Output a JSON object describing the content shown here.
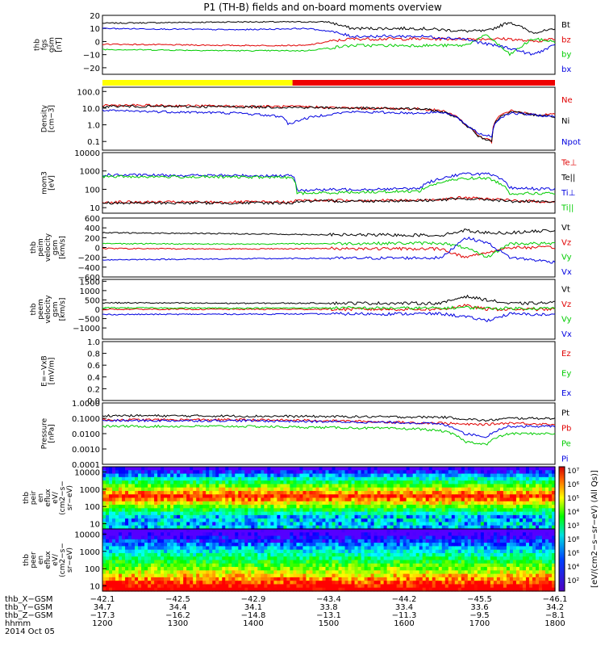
{
  "title": "P1 (TH-B) fields and on-board moments overview",
  "date_label": "2014 Oct 05",
  "colors": {
    "black": "#000000",
    "red": "#e00000",
    "green": "#00cc00",
    "blue": "#0000e0",
    "yellow": "#ffff00",
    "bar_red": "#ee0000"
  },
  "chart_data": {
    "type": "line",
    "x_range_hhmm": [
      "1200",
      "1800"
    ],
    "panels": [
      {
        "id": "fgs",
        "ylabel": [
          "thb",
          "fgs",
          "gsm",
          "[nT]"
        ],
        "yscale": "linear",
        "ylim": [
          -25,
          20
        ],
        "ticks": [
          "20",
          "10",
          "0",
          "−10",
          "−20"
        ],
        "tick_values": [
          20,
          10,
          0,
          -10,
          -20
        ],
        "legend": [
          {
            "label": "Bt",
            "color": "#000000"
          },
          {
            "label": "bz",
            "color": "#e00000"
          },
          {
            "label": "by",
            "color": "#00cc00"
          },
          {
            "label": "bx",
            "color": "#0000e0"
          }
        ],
        "series": [
          {
            "name": "Bt",
            "color": "#000000",
            "x": [
              0,
              0.3,
              0.45,
              0.5,
              0.55,
              0.7,
              0.8,
              0.85,
              0.9,
              0.95,
              1.0
            ],
            "y": [
              14,
              15,
              15,
              15,
              10,
              10,
              8,
              8,
              15,
              7,
              9
            ]
          },
          {
            "name": "bz",
            "color": "#e00000",
            "x": [
              0,
              0.3,
              0.45,
              0.5,
              0.55,
              0.7,
              0.8,
              0.85,
              0.9,
              0.95,
              1.0
            ],
            "y": [
              -2,
              -3,
              -3,
              0,
              2,
              2,
              2,
              2,
              2,
              0,
              2
            ]
          },
          {
            "name": "by",
            "color": "#00cc00",
            "x": [
              0,
              0.3,
              0.45,
              0.5,
              0.55,
              0.7,
              0.8,
              0.85,
              0.9,
              0.95,
              1.0
            ],
            "y": [
              -6,
              -7,
              -7,
              -5,
              -3,
              -3,
              -3,
              5,
              -10,
              2,
              0
            ]
          },
          {
            "name": "bx",
            "color": "#0000e0",
            "x": [
              0,
              0.3,
              0.45,
              0.5,
              0.55,
              0.7,
              0.8,
              0.85,
              0.9,
              0.95,
              1.0
            ],
            "y": [
              10,
              9,
              10,
              8,
              4,
              4,
              2,
              -2,
              -5,
              -10,
              -3
            ]
          }
        ]
      },
      {
        "id": "density",
        "ylabel": [
          "Density",
          "[cm−3]"
        ],
        "yscale": "log",
        "ylim": [
          0.03,
          180
        ],
        "ticks": [
          "100.0",
          "10.0",
          "1.0",
          "0.1"
        ],
        "tick_values": [
          100,
          10,
          1,
          0.1
        ],
        "legend": [
          {
            "label": "Ne",
            "color": "#e00000"
          },
          {
            "label": "Ni",
            "color": "#000000"
          },
          {
            "label": "Npot",
            "color": "#0000e0"
          }
        ],
        "series": [
          {
            "name": "Ne",
            "color": "#e00000",
            "x": [
              0,
              0.3,
              0.45,
              0.55,
              0.7,
              0.75,
              0.8,
              0.83,
              0.86,
              0.9,
              0.95,
              1.0
            ],
            "y": [
              15,
              13,
              12,
              10,
              9,
              7,
              1,
              0.2,
              0.1,
              7,
              4,
              4
            ]
          },
          {
            "name": "Ni",
            "color": "#000000",
            "x": [
              0,
              0.3,
              0.45,
              0.55,
              0.7,
              0.75,
              0.8,
              0.83,
              0.86,
              0.9,
              0.95,
              1.0
            ],
            "y": [
              13,
              12,
              11,
              10,
              9,
              6,
              1,
              0.2,
              0.1,
              6,
              4,
              3
            ]
          },
          {
            "name": "Npot",
            "color": "#0000e0",
            "x": [
              0,
              0.3,
              0.4,
              0.41,
              0.55,
              0.7,
              0.75,
              0.8,
              0.83,
              0.86,
              0.9,
              0.95,
              1.0
            ],
            "y": [
              7,
              5,
              3,
              1,
              6,
              5,
              6,
              1,
              0.3,
              0.2,
              5,
              4,
              3
            ]
          }
        ]
      },
      {
        "id": "temp",
        "ylabel": [
          "mom3",
          "[eV]"
        ],
        "yscale": "log",
        "ylim": [
          5,
          10000
        ],
        "ticks": [
          "10000",
          "1000",
          "100",
          "10"
        ],
        "tick_values": [
          10000,
          1000,
          100,
          10
        ],
        "legend": [
          {
            "label": "Te⊥",
            "color": "#e00000"
          },
          {
            "label": "Te||",
            "color": "#000000"
          },
          {
            "label": "Ti⊥",
            "color": "#0000e0"
          },
          {
            "label": "Ti||",
            "color": "#00cc00"
          }
        ],
        "series": [
          {
            "name": "Te⊥",
            "color": "#e00000",
            "x": [
              0,
              0.42,
              0.43,
              0.7,
              0.8,
              0.85,
              0.9,
              1.0
            ],
            "y": [
              20,
              20,
              25,
              25,
              35,
              30,
              25,
              20
            ]
          },
          {
            "name": "Te||",
            "color": "#000000",
            "x": [
              0,
              0.42,
              0.43,
              0.7,
              0.8,
              0.85,
              0.9,
              1.0
            ],
            "y": [
              18,
              18,
              22,
              24,
              30,
              28,
              22,
              20
            ]
          },
          {
            "name": "Ti⊥",
            "color": "#0000e0",
            "x": [
              0,
              0.42,
              0.43,
              0.7,
              0.8,
              0.85,
              0.9,
              1.0
            ],
            "y": [
              600,
              550,
              90,
              110,
              700,
              700,
              120,
              100
            ]
          },
          {
            "name": "Ti||",
            "color": "#00cc00",
            "x": [
              0,
              0.42,
              0.43,
              0.7,
              0.8,
              0.85,
              0.9,
              1.0
            ],
            "y": [
              500,
              450,
              60,
              80,
              400,
              400,
              60,
              60
            ]
          }
        ]
      },
      {
        "id": "peim",
        "ylabel": [
          "thb",
          "peim",
          "velocity",
          "gsm",
          "[km/s]"
        ],
        "yscale": "linear",
        "ylim": [
          -600,
          600
        ],
        "ticks": [
          "600",
          "400",
          "200",
          "0",
          "−200",
          "−400",
          "−600"
        ],
        "tick_values": [
          600,
          400,
          200,
          0,
          -200,
          -400,
          -600
        ],
        "legend": [
          {
            "label": "Vt",
            "color": "#000000"
          },
          {
            "label": "Vz",
            "color": "#e00000"
          },
          {
            "label": "Vy",
            "color": "#00cc00"
          },
          {
            "label": "Vx",
            "color": "#0000e0"
          }
        ],
        "series": [
          {
            "name": "Vt",
            "color": "#000000",
            "x": [
              0,
              0.3,
              0.5,
              0.75,
              0.8,
              0.85,
              0.9,
              1.0
            ],
            "y": [
              300,
              280,
              260,
              250,
              350,
              300,
              300,
              350
            ]
          },
          {
            "name": "Vz",
            "color": "#e00000",
            "x": [
              0,
              0.3,
              0.5,
              0.75,
              0.8,
              0.85,
              0.9,
              1.0
            ],
            "y": [
              -20,
              -30,
              -20,
              -30,
              -200,
              -100,
              0,
              0
            ]
          },
          {
            "name": "Vy",
            "color": "#00cc00",
            "x": [
              0,
              0.3,
              0.5,
              0.75,
              0.8,
              0.85,
              0.9,
              1.0
            ],
            "y": [
              80,
              70,
              80,
              90,
              0,
              -200,
              80,
              80
            ]
          },
          {
            "name": "Vx",
            "color": "#0000e0",
            "x": [
              0,
              0.3,
              0.5,
              0.75,
              0.8,
              0.85,
              0.9,
              1.0
            ],
            "y": [
              -250,
              -230,
              -220,
              -210,
              200,
              100,
              -200,
              -300
            ]
          }
        ]
      },
      {
        "id": "peem",
        "ylabel": [
          "thb",
          "peem",
          "velocity",
          "gsm",
          "[km/s]"
        ],
        "yscale": "linear",
        "ylim": [
          -1600,
          1600
        ],
        "ticks": [
          "1500",
          "1000",
          "500",
          "0",
          "−500",
          "−1000"
        ],
        "tick_values": [
          1500,
          1000,
          500,
          0,
          -500,
          -1000
        ],
        "legend": [
          {
            "label": "Vt",
            "color": "#000000"
          },
          {
            "label": "Vz",
            "color": "#e00000"
          },
          {
            "label": "Vy",
            "color": "#00cc00"
          },
          {
            "label": "Vx",
            "color": "#0000e0"
          }
        ],
        "series": [
          {
            "name": "Vt",
            "color": "#000000",
            "x": [
              0,
              0.3,
              0.5,
              0.75,
              0.8,
              0.85,
              0.9,
              1.0
            ],
            "y": [
              350,
              320,
              330,
              320,
              700,
              500,
              300,
              350
            ]
          },
          {
            "name": "Vz",
            "color": "#e00000",
            "x": [
              0,
              0.3,
              0.5,
              0.75,
              0.8,
              0.85,
              0.9,
              1.0
            ],
            "y": [
              0,
              0,
              0,
              0,
              200,
              0,
              0,
              0
            ]
          },
          {
            "name": "Vy",
            "color": "#00cc00",
            "x": [
              0,
              0.3,
              0.5,
              0.75,
              0.8,
              0.85,
              0.9,
              1.0
            ],
            "y": [
              80,
              60,
              70,
              60,
              100,
              50,
              50,
              50
            ]
          },
          {
            "name": "Vx",
            "color": "#0000e0",
            "x": [
              0,
              0.3,
              0.5,
              0.75,
              0.8,
              0.85,
              0.9,
              1.0
            ],
            "y": [
              -280,
              -260,
              -250,
              -240,
              -400,
              -600,
              -250,
              -300
            ]
          }
        ]
      },
      {
        "id": "efield",
        "ylabel": [
          "E=−VxB",
          "[mV/m]"
        ],
        "yscale": "linear",
        "ylim": [
          0,
          1
        ],
        "ticks": [
          "1.0",
          "0.8",
          "0.6",
          "0.4",
          "0.2",
          "0.0"
        ],
        "tick_values": [
          1,
          0.8,
          0.6,
          0.4,
          0.2,
          0
        ],
        "legend": [
          {
            "label": "Ez",
            "color": "#e00000"
          },
          {
            "label": "Ey",
            "color": "#00cc00"
          },
          {
            "label": "Ex",
            "color": "#0000e0"
          }
        ],
        "series": []
      },
      {
        "id": "pressure",
        "ylabel": [
          "Pressure",
          "[nPa]"
        ],
        "yscale": "log",
        "ylim": [
          0.0001,
          1
        ],
        "ticks": [
          "1.0000",
          "0.1000",
          "0.0100",
          "0.0010",
          "0.0001"
        ],
        "tick_values": [
          1,
          0.1,
          0.01,
          0.001,
          0.0001
        ],
        "legend": [
          {
            "label": "Pt",
            "color": "#000000"
          },
          {
            "label": "Pb",
            "color": "#e00000"
          },
          {
            "label": "Pe",
            "color": "#00cc00"
          },
          {
            "label": "Pi",
            "color": "#0000e0"
          }
        ],
        "series": [
          {
            "name": "Pt",
            "color": "#000000",
            "x": [
              0,
              0.3,
              0.5,
              0.7,
              0.75,
              0.8,
              0.85,
              0.9,
              1.0
            ],
            "y": [
              0.15,
              0.14,
              0.13,
              0.12,
              0.12,
              0.09,
              0.07,
              0.1,
              0.1
            ]
          },
          {
            "name": "Pb",
            "color": "#e00000",
            "x": [
              0,
              0.3,
              0.5,
              0.7,
              0.75,
              0.8,
              0.85,
              0.9,
              1.0
            ],
            "y": [
              0.08,
              0.08,
              0.07,
              0.05,
              0.05,
              0.04,
              0.04,
              0.05,
              0.04
            ]
          },
          {
            "name": "Pe",
            "color": "#00cc00",
            "x": [
              0,
              0.3,
              0.5,
              0.7,
              0.75,
              0.8,
              0.85,
              0.9,
              1.0
            ],
            "y": [
              0.03,
              0.03,
              0.025,
              0.02,
              0.015,
              0.003,
              0.002,
              0.01,
              0.01
            ]
          },
          {
            "name": "Pi",
            "color": "#0000e0",
            "x": [
              0,
              0.3,
              0.5,
              0.7,
              0.75,
              0.8,
              0.85,
              0.9,
              1.0
            ],
            "y": [
              0.07,
              0.07,
              0.06,
              0.05,
              0.04,
              0.01,
              0.006,
              0.03,
              0.03
            ]
          }
        ]
      },
      {
        "id": "peir",
        "type": "heatmap",
        "ylabel": [
          "thb",
          "peir",
          "en",
          "eflux",
          "eV/",
          "(cm2−s−",
          "sr−eV)"
        ],
        "yscale": "log",
        "ylim": [
          5,
          20000
        ],
        "ticks": [
          "10000",
          "1000",
          "100",
          "10"
        ],
        "tick_values": [
          10000,
          1000,
          100,
          10
        ]
      },
      {
        "id": "peer",
        "type": "heatmap",
        "ylabel": [
          "thb",
          "peer",
          "en",
          "eflux",
          "eV/",
          "(cm2−s−",
          "sr−eV)"
        ],
        "yscale": "log",
        "ylim": [
          5,
          20000
        ],
        "ticks": [
          "10000",
          "1000",
          "100",
          "10"
        ],
        "tick_values": [
          10000,
          1000,
          100,
          10
        ]
      }
    ],
    "colorbar": {
      "label": "[eV/(cm2−s−sr−eV) (All Qs)]",
      "ticks": [
        "10⁷",
        "10⁶",
        "10⁵",
        "10⁴",
        "10³",
        "10⁸",
        "10⁶",
        "10⁴",
        "10²"
      ]
    },
    "bottom_axes": {
      "rows": [
        {
          "label": "thb_X−GSM",
          "values": [
            "−42.1",
            "−42.5",
            "−42.9",
            "−43.4",
            "−44.2",
            "−45.5",
            "−46.1"
          ]
        },
        {
          "label": "thb_Y−GSM",
          "values": [
            "34.7",
            "34.4",
            "34.1",
            "33.8",
            "33.4",
            "33.6",
            "34.2"
          ]
        },
        {
          "label": "thb_Z−GSM",
          "values": [
            "−17.3",
            "−16.2",
            "−14.8",
            "−13.1",
            "−11.3",
            "−9.5",
            "−8.1"
          ]
        },
        {
          "label": "hhmm",
          "values": [
            "1200",
            "1300",
            "1400",
            "1500",
            "1600",
            "1700",
            "1800"
          ]
        }
      ]
    },
    "mode_bar": [
      {
        "from": 0,
        "to": 0.42,
        "color": "#ffff00"
      },
      {
        "from": 0.42,
        "to": 1.0,
        "color": "#ee0000"
      }
    ]
  }
}
